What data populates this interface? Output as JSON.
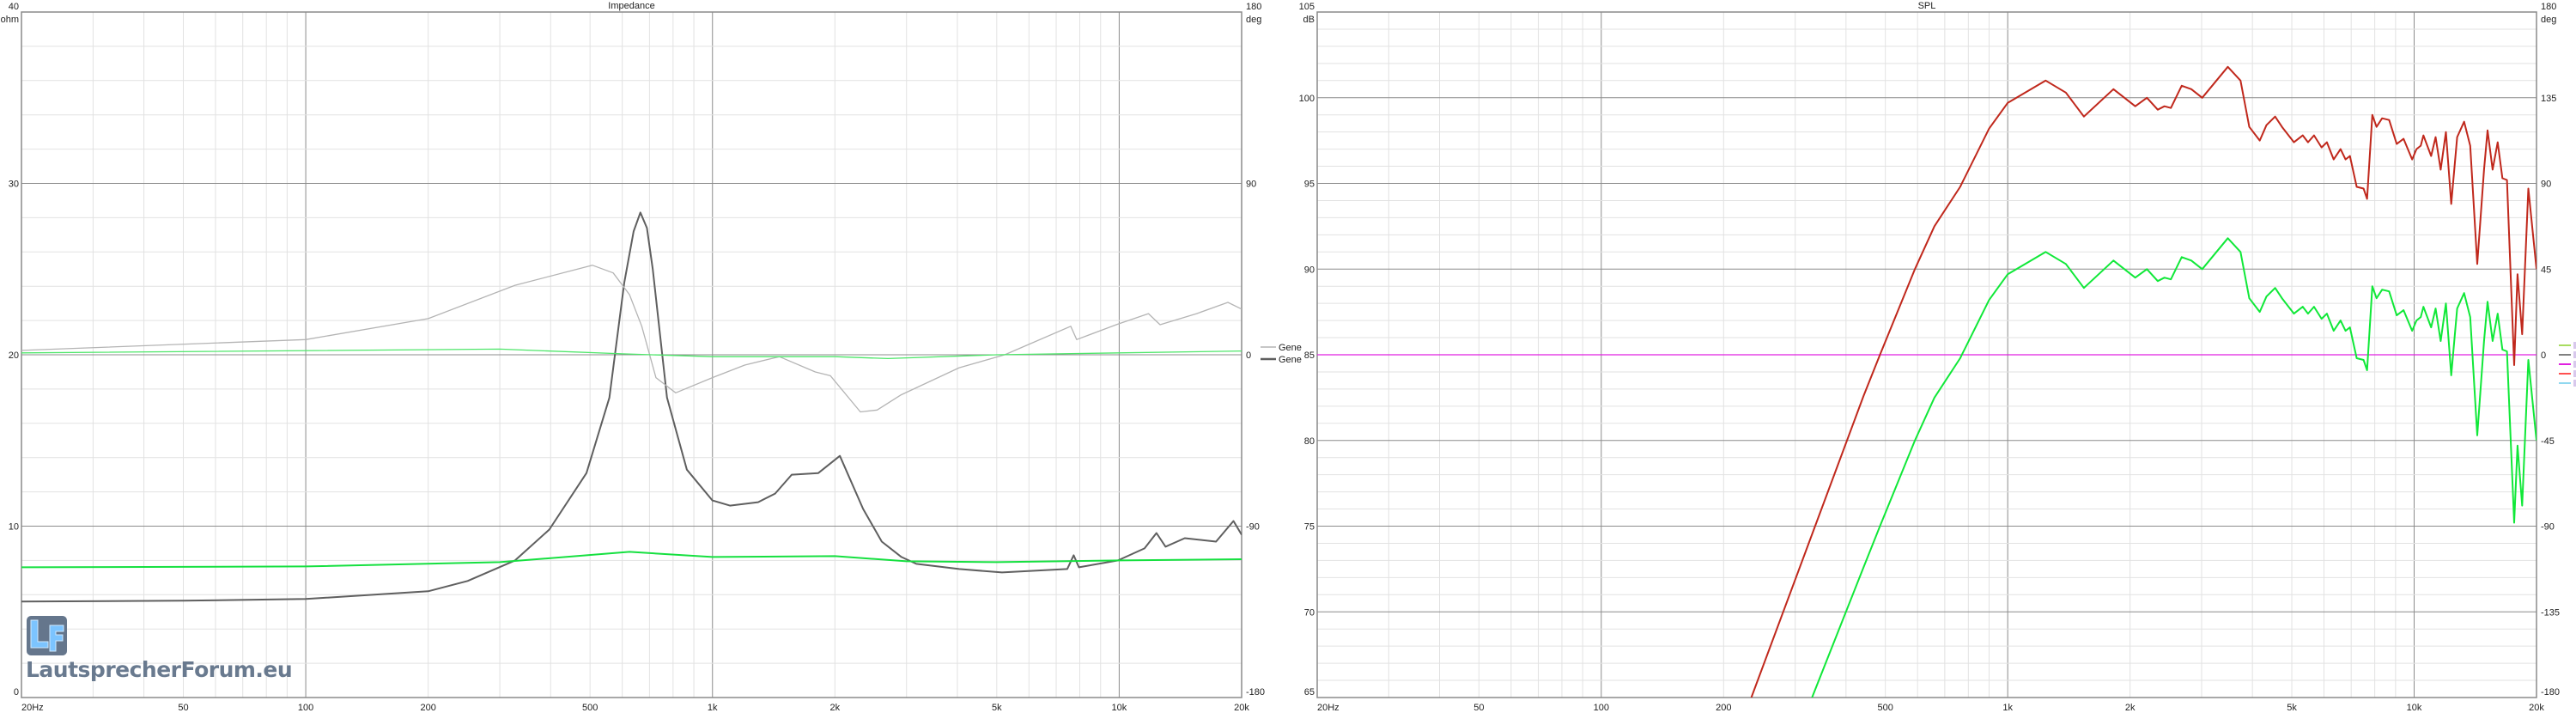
{
  "watermark": {
    "logo": "LF",
    "text": "LautsprecherForum.eu"
  },
  "colors": {
    "impedance_a": "#5f5f5f",
    "phase_a": "#b4b4b4",
    "impedance_b": "#16e040",
    "phase_b": "#4ee66a",
    "spl_red": "#c0281c",
    "spl_green": "#10e838",
    "flat_magenta": "#e020e0",
    "grid_minor": "#e2e2e2",
    "grid_major": "#8c8c8c"
  },
  "chart_data": [
    {
      "type": "line",
      "title": "Impedance",
      "xscale": "log",
      "xlim": [
        20,
        20000
      ],
      "xticks": [
        "20Hz",
        "50",
        "100",
        "200",
        "500",
        "1k",
        "2k",
        "5k",
        "10k",
        "20k"
      ],
      "xtick_values": [
        20,
        50,
        100,
        200,
        500,
        1000,
        2000,
        5000,
        10000,
        20000
      ],
      "ylim": [
        0,
        40
      ],
      "yunit": "ohm",
      "yticks": [
        "40",
        "30",
        "20",
        "10",
        "0"
      ],
      "ytick_values": [
        40,
        30,
        20,
        10,
        0
      ],
      "y2lim": [
        -180,
        180
      ],
      "y2unit": "deg",
      "y2ticks": [
        "180",
        "90",
        "0",
        "-90",
        "-180"
      ],
      "y2tick_values": [
        180,
        90,
        0,
        -90,
        -180
      ],
      "grid": true,
      "legend": {
        "placement": "right",
        "entries": [
          {
            "label": "Gene",
            "color": "#b4b4b4"
          },
          {
            "label": "Gene",
            "color": "#5f5f5f"
          }
        ]
      },
      "series": [
        {
          "axis": "y",
          "color": "#5f5f5f",
          "width": 2,
          "points": [
            [
              20,
              5.6
            ],
            [
              50,
              5.65
            ],
            [
              100,
              5.75
            ],
            [
              200,
              6.2
            ],
            [
              250,
              6.8
            ],
            [
              327,
              8.0
            ],
            [
              397,
              9.8
            ],
            [
              490,
              13.1
            ],
            [
              558,
              17.5
            ],
            [
              607,
              24.2
            ],
            [
              640,
              27.2
            ],
            [
              665,
              28.3
            ],
            [
              690,
              27.4
            ],
            [
              713,
              25.0
            ],
            [
              773,
              17.5
            ],
            [
              865,
              13.3
            ],
            [
              1000,
              11.5
            ],
            [
              1104,
              11.2
            ],
            [
              1295,
              11.4
            ],
            [
              1426,
              11.9
            ],
            [
              1566,
              13.0
            ],
            [
              1821,
              13.1
            ],
            [
              2057,
              14.1
            ],
            [
              2346,
              11.0
            ],
            [
              2607,
              9.1
            ],
            [
              2915,
              8.2
            ],
            [
              3170,
              7.8
            ],
            [
              4040,
              7.5
            ],
            [
              5150,
              7.3
            ],
            [
              7450,
              7.5
            ],
            [
              7730,
              8.3
            ],
            [
              7960,
              7.6
            ],
            [
              9930,
              8.0
            ],
            [
              11540,
              8.7
            ],
            [
              12350,
              9.6
            ],
            [
              13000,
              8.8
            ],
            [
              14500,
              9.3
            ],
            [
              17300,
              9.1
            ],
            [
              19100,
              10.3
            ],
            [
              20000,
              9.5
            ]
          ]
        },
        {
          "axis": "y2",
          "color": "#b4b4b4",
          "width": 1.3,
          "points": [
            [
              20,
              2.3
            ],
            [
              100,
              8
            ],
            [
              200,
              19
            ],
            [
              327,
              36.5
            ],
            [
              507,
              47
            ],
            [
              570,
              43
            ],
            [
              625,
              31.6
            ],
            [
              670,
              15
            ],
            [
              726,
              -12
            ],
            [
              812,
              -20
            ],
            [
              1000,
              -12
            ],
            [
              1200,
              -5.4
            ],
            [
              1460,
              -1
            ],
            [
              1790,
              -9
            ],
            [
              1950,
              -11
            ],
            [
              2310,
              -30
            ],
            [
              2540,
              -29
            ],
            [
              2910,
              -21
            ],
            [
              4040,
              -6.8
            ],
            [
              5230,
              0
            ],
            [
              7600,
              15
            ],
            [
              7860,
              8
            ],
            [
              9900,
              16
            ],
            [
              11800,
              21.6
            ],
            [
              12600,
              15.8
            ],
            [
              15500,
              21.6
            ],
            [
              18500,
              27.5
            ],
            [
              20000,
              24
            ]
          ]
        },
        {
          "axis": "y",
          "color": "#16e040",
          "width": 2,
          "points": [
            [
              20,
              7.6
            ],
            [
              100,
              7.65
            ],
            [
              300,
              7.9
            ],
            [
              625,
              8.5
            ],
            [
              1000,
              8.2
            ],
            [
              2000,
              8.25
            ],
            [
              3000,
              7.95
            ],
            [
              5000,
              7.9
            ],
            [
              10000,
              8.0
            ],
            [
              20000,
              8.07
            ]
          ]
        },
        {
          "axis": "y2",
          "color": "#4ee66a",
          "width": 1.3,
          "points": [
            [
              20,
              1
            ],
            [
              300,
              3
            ],
            [
              600,
              0.5
            ],
            [
              1000,
              -1
            ],
            [
              2000,
              -1
            ],
            [
              2700,
              -2
            ],
            [
              5000,
              0
            ],
            [
              10000,
              1
            ],
            [
              20000,
              2
            ]
          ]
        }
      ]
    },
    {
      "type": "line",
      "title": "SPL",
      "xscale": "log",
      "xlim": [
        20,
        20000
      ],
      "xticks": [
        "20Hz",
        "50",
        "100",
        "200",
        "500",
        "1k",
        "2k",
        "5k",
        "10k",
        "20k"
      ],
      "xtick_values": [
        20,
        50,
        100,
        200,
        500,
        1000,
        2000,
        5000,
        10000,
        20000
      ],
      "ylim": [
        65,
        105
      ],
      "yunit": "dB",
      "yticks": [
        "105",
        "100",
        "95",
        "90",
        "85",
        "80",
        "75",
        "70",
        "65"
      ],
      "ytick_values": [
        105,
        100,
        95,
        90,
        85,
        80,
        75,
        70,
        65
      ],
      "y2lim": [
        -180,
        180
      ],
      "y2unit": "deg",
      "y2ticks": [
        "180",
        "135",
        "90",
        "45",
        "0",
        "-45",
        "-90",
        "-135",
        "-180"
      ],
      "y2tick_values": [
        180,
        135,
        90,
        45,
        0,
        -45,
        -90,
        -135,
        -180
      ],
      "grid": true,
      "legend": {
        "placement": "right",
        "entries": [
          {
            "color": "#a8dc60"
          },
          {
            "color": "#808080"
          },
          {
            "color": "#e020e0"
          },
          {
            "color": "#ff5050"
          },
          {
            "color": "#90d8f0"
          }
        ]
      },
      "series": [
        {
          "axis": "y",
          "color": "#e020e0",
          "width": 1.3,
          "points": [
            [
              20,
              85
            ],
            [
              20000,
              85
            ]
          ]
        },
        {
          "axis": "y",
          "color": "#c0281c",
          "width": 2,
          "points": [
            [
              234,
              65
            ],
            [
              442,
              82.6
            ],
            [
              485,
              85.0
            ],
            [
              591,
              90.0
            ],
            [
              660,
              92.5
            ],
            [
              764,
              94.8
            ],
            [
              900,
              98.2
            ],
            [
              1000,
              99.7
            ],
            [
              1240,
              101.0
            ],
            [
              1390,
              100.3
            ],
            [
              1540,
              98.9
            ],
            [
              1820,
              100.5
            ],
            [
              2060,
              99.5
            ],
            [
              2200,
              100.0
            ],
            [
              2340,
              99.3
            ],
            [
              2430,
              99.5
            ],
            [
              2520,
              99.4
            ],
            [
              2680,
              100.7
            ],
            [
              2830,
              100.5
            ],
            [
              3010,
              100.0
            ],
            [
              3480,
              101.8
            ],
            [
              3740,
              101.0
            ],
            [
              3930,
              98.3
            ],
            [
              4170,
              97.5
            ],
            [
              4330,
              98.4
            ],
            [
              4550,
              98.9
            ],
            [
              4730,
              98.3
            ],
            [
              5060,
              97.4
            ],
            [
              5320,
              97.8
            ],
            [
              5480,
              97.4
            ],
            [
              5670,
              97.8
            ],
            [
              5920,
              97.1
            ],
            [
              6100,
              97.4
            ],
            [
              6340,
              96.4
            ],
            [
              6590,
              97.0
            ],
            [
              6780,
              96.4
            ],
            [
              6950,
              96.6
            ],
            [
              7220,
              94.8
            ],
            [
              7510,
              94.7
            ],
            [
              7660,
              94.1
            ],
            [
              7890,
              99.0
            ],
            [
              8080,
              98.3
            ],
            [
              8340,
              98.8
            ],
            [
              8680,
              98.7
            ],
            [
              9060,
              97.3
            ],
            [
              9420,
              97.6
            ],
            [
              9890,
              96.4
            ],
            [
              10130,
              97.0
            ],
            [
              10380,
              97.2
            ],
            [
              10540,
              97.8
            ],
            [
              11010,
              96.6
            ],
            [
              11290,
              97.7
            ],
            [
              11620,
              95.8
            ],
            [
              11970,
              98.0
            ],
            [
              12340,
              93.8
            ],
            [
              12760,
              97.7
            ],
            [
              13270,
              98.6
            ],
            [
              13740,
              97.2
            ],
            [
              14300,
              90.3
            ],
            [
              14860,
              95.8
            ],
            [
              15160,
              98.1
            ],
            [
              15600,
              95.8
            ],
            [
              16050,
              97.4
            ],
            [
              16490,
              95.3
            ],
            [
              16920,
              95.2
            ],
            [
              17620,
              84.4
            ],
            [
              17960,
              89.7
            ],
            [
              18440,
              86.2
            ],
            [
              19100,
              94.7
            ],
            [
              20000,
              90.0
            ]
          ]
        },
        {
          "axis": "y",
          "color": "#10e838",
          "width": 2,
          "points": [
            [
              330,
              65
            ],
            [
              442,
              72.6
            ],
            [
              485,
              75.0
            ],
            [
              591,
              80.0
            ],
            [
              660,
              82.5
            ],
            [
              764,
              84.8
            ],
            [
              900,
              88.2
            ],
            [
              1000,
              89.7
            ],
            [
              1240,
              91.0
            ],
            [
              1390,
              90.3
            ],
            [
              1540,
              88.9
            ],
            [
              1820,
              90.5
            ],
            [
              2060,
              89.5
            ],
            [
              2200,
              90.0
            ],
            [
              2340,
              89.3
            ],
            [
              2430,
              89.5
            ],
            [
              2520,
              89.4
            ],
            [
              2680,
              90.7
            ],
            [
              2830,
              90.5
            ],
            [
              3010,
              90.0
            ],
            [
              3480,
              91.8
            ],
            [
              3740,
              91.0
            ],
            [
              3930,
              88.3
            ],
            [
              4170,
              87.5
            ],
            [
              4330,
              88.4
            ],
            [
              4550,
              88.9
            ],
            [
              4730,
              88.3
            ],
            [
              5060,
              87.4
            ],
            [
              5320,
              87.8
            ],
            [
              5480,
              87.4
            ],
            [
              5670,
              87.8
            ],
            [
              5920,
              87.1
            ],
            [
              6100,
              87.4
            ],
            [
              6340,
              86.4
            ],
            [
              6590,
              87.0
            ],
            [
              6780,
              86.4
            ],
            [
              6950,
              86.6
            ],
            [
              7220,
              84.8
            ],
            [
              7510,
              84.7
            ],
            [
              7660,
              84.1
            ],
            [
              7890,
              89.0
            ],
            [
              8080,
              88.3
            ],
            [
              8340,
              88.8
            ],
            [
              8680,
              88.7
            ],
            [
              9060,
              87.3
            ],
            [
              9420,
              87.6
            ],
            [
              9890,
              86.4
            ],
            [
              10130,
              87.0
            ],
            [
              10380,
              87.2
            ],
            [
              10540,
              87.8
            ],
            [
              11010,
              86.6
            ],
            [
              11290,
              87.7
            ],
            [
              11620,
              85.8
            ],
            [
              11970,
              88.0
            ],
            [
              12340,
              83.8
            ],
            [
              12760,
              87.7
            ],
            [
              13270,
              88.6
            ],
            [
              13740,
              87.2
            ],
            [
              14300,
              80.3
            ],
            [
              14860,
              85.8
            ],
            [
              15160,
              88.1
            ],
            [
              15600,
              85.8
            ],
            [
              16050,
              87.4
            ],
            [
              16490,
              85.3
            ],
            [
              16920,
              85.2
            ],
            [
              17620,
              75.2
            ],
            [
              17960,
              79.7
            ],
            [
              18440,
              76.2
            ],
            [
              19100,
              84.7
            ],
            [
              20000,
              80.0
            ]
          ]
        }
      ]
    }
  ]
}
